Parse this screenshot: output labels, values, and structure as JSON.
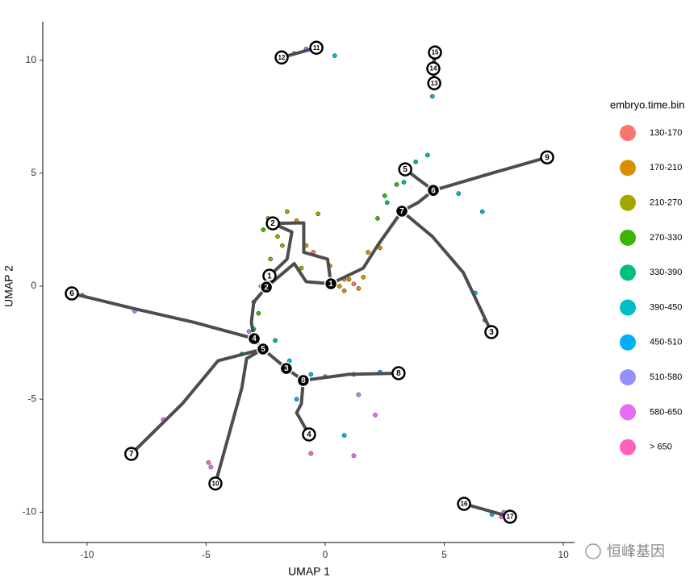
{
  "chart_data": {
    "type": "scatter",
    "x_label": "UMAP 1",
    "y_label": "UMAP 2",
    "xlim": [
      -11.86,
      10.47
    ],
    "ylim": [
      -11.34,
      11.7
    ],
    "xticks": [
      -10,
      -5,
      0,
      5,
      10
    ],
    "yticks": [
      -10,
      -5,
      0,
      5,
      10
    ],
    "grid": false,
    "legend_title": "embryo.time.bin",
    "legend_position": "right",
    "series": [
      {
        "name": "130-170",
        "color": "#F8766D",
        "x": [
          0.8,
          1.2,
          -0.5
        ],
        "y": [
          0.3,
          0.1,
          1.5
        ]
      },
      {
        "name": "170-210",
        "color": "#D89000",
        "x": [
          0.6,
          1.0,
          1.4,
          0.2,
          -0.8,
          1.8,
          -1.2,
          0.8,
          1.6,
          2.3
        ],
        "y": [
          0.0,
          0.3,
          -0.1,
          0.9,
          1.8,
          1.5,
          2.9,
          -0.2,
          0.4,
          1.7
        ]
      },
      {
        "name": "210-270",
        "color": "#A3A500",
        "x": [
          -2.0,
          -2.4,
          -1.6,
          -2.3,
          -1.0,
          -2.7,
          -0.3,
          -1.8
        ],
        "y": [
          2.2,
          3.0,
          3.3,
          1.2,
          0.8,
          0.0,
          3.2,
          1.8
        ]
      },
      {
        "name": "270-330",
        "color": "#39B600",
        "x": [
          -2.6,
          -3.0,
          -2.8,
          2.5,
          2.2,
          3.0,
          -2.4
        ],
        "y": [
          2.5,
          -0.7,
          -1.2,
          4.0,
          3.0,
          4.5,
          0.4
        ]
      },
      {
        "name": "330-390",
        "color": "#00BF7D",
        "x": [
          3.8,
          3.3,
          2.6,
          -3.0,
          -2.1,
          4.3
        ],
        "y": [
          5.5,
          4.6,
          3.7,
          -1.9,
          -2.4,
          5.8
        ]
      },
      {
        "name": "390-450",
        "color": "#00BFC4",
        "x": [
          -1.5,
          -0.6,
          1.2,
          0.4,
          4.5,
          5.6,
          6.7,
          -3.5,
          0.0
        ],
        "y": [
          -3.3,
          -3.9,
          -3.9,
          10.2,
          8.4,
          4.1,
          -1.5,
          -3.0,
          -4.0
        ]
      },
      {
        "name": "450-510",
        "color": "#00B0F6",
        "x": [
          6.6,
          6.3,
          0.8,
          -1.2,
          2.3,
          7.0
        ],
        "y": [
          3.3,
          -0.3,
          -6.6,
          -5.0,
          -3.8,
          -10.1
        ]
      },
      {
        "name": "510-580",
        "color": "#9590FF",
        "x": [
          1.4,
          -0.8,
          7.5,
          -8.0,
          -3.2
        ],
        "y": [
          -4.8,
          10.5,
          -10.0,
          -1.1,
          -2.0
        ]
      },
      {
        "name": "580-650",
        "color": "#E76BF3",
        "x": [
          2.1,
          -6.8,
          -4.8,
          -1.3,
          1.2
        ],
        "y": [
          -5.7,
          -5.9,
          -8.0,
          10.3,
          -7.5
        ]
      },
      {
        "name": "> 650",
        "color": "#FF62BC",
        "x": [
          -0.6,
          -10.2,
          -4.9,
          7.4
        ],
        "y": [
          -7.4,
          -0.4,
          -7.8,
          -10.2
        ]
      }
    ],
    "trajectory_color": "#4d4d4d",
    "trajectory": [
      {
        "x": [
          -1.83,
          -0.37
        ],
        "y": [
          10.12,
          10.55
        ]
      },
      {
        "x": [
          4.61,
          4.54,
          4.58
        ],
        "y": [
          10.34,
          9.63,
          8.98
        ]
      },
      {
        "x": [
          5.83,
          7.76
        ],
        "y": [
          -9.63,
          -10.2
        ]
      },
      {
        "x": [
          9.32,
          7.0,
          4.54
        ],
        "y": [
          5.7,
          5.0,
          4.24
        ]
      },
      {
        "x": [
          4.54,
          3.36
        ],
        "y": [
          4.24,
          5.17
        ]
      },
      {
        "x": [
          4.54,
          3.9,
          3.22
        ],
        "y": [
          4.24,
          3.7,
          3.32
        ]
      },
      {
        "x": [
          3.22,
          4.5,
          5.8,
          6.98
        ],
        "y": [
          3.32,
          2.2,
          0.6,
          -2.03
        ]
      },
      {
        "x": [
          3.22,
          2.2,
          1.6,
          0.24
        ],
        "y": [
          3.32,
          1.8,
          0.8,
          0.11
        ]
      },
      {
        "x": [
          0.24,
          0.1,
          -0.9,
          -0.9,
          -2.2
        ],
        "y": [
          0.11,
          1.2,
          1.5,
          2.8,
          2.78
        ]
      },
      {
        "x": [
          -2.2,
          -1.4,
          -1.6,
          -2.34
        ],
        "y": [
          2.78,
          2.4,
          1.2,
          0.46
        ]
      },
      {
        "x": [
          0.24,
          -0.8,
          -1.3,
          -2.47
        ],
        "y": [
          0.11,
          0.2,
          1.0,
          -0.04
        ]
      },
      {
        "x": [
          -2.47,
          -3.0,
          -3.1,
          -2.98
        ],
        "y": [
          -0.04,
          -0.7,
          -1.6,
          -2.32
        ]
      },
      {
        "x": [
          -10.64,
          -8.0,
          -5.5,
          -2.98
        ],
        "y": [
          -0.32,
          -1.0,
          -1.6,
          -2.32
        ]
      },
      {
        "x": [
          -2.98,
          -2.61
        ],
        "y": [
          -2.32,
          -2.78
        ]
      },
      {
        "x": [
          -2.61,
          -1.63
        ],
        "y": [
          -2.78,
          -3.64
        ]
      },
      {
        "x": [
          -1.63,
          -0.92
        ],
        "y": [
          -3.64,
          -4.17
        ]
      },
      {
        "x": [
          -0.92,
          1.0,
          3.08
        ],
        "y": [
          -4.17,
          -3.9,
          -3.85
        ]
      },
      {
        "x": [
          -0.92,
          -1.0,
          -1.2,
          -0.68
        ],
        "y": [
          -4.17,
          -5.2,
          -5.6,
          -6.56
        ]
      },
      {
        "x": [
          -2.61,
          -4.5,
          -6.0,
          -8.14
        ],
        "y": [
          -2.78,
          -3.3,
          -5.2,
          -7.42
        ]
      },
      {
        "x": [
          -2.61,
          -3.3,
          -3.5,
          -4.61
        ],
        "y": [
          -2.78,
          -3.2,
          -4.5,
          -8.73
        ]
      }
    ],
    "nodes": [
      {
        "label": "12",
        "x": -1.83,
        "y": 10.12,
        "fill": "#ffffff"
      },
      {
        "label": "11",
        "x": -0.37,
        "y": 10.55,
        "fill": "#ffffff"
      },
      {
        "label": "15",
        "x": 4.61,
        "y": 10.34,
        "fill": "#ffffff"
      },
      {
        "label": "14",
        "x": 4.54,
        "y": 9.63,
        "fill": "#ffffff"
      },
      {
        "label": "13",
        "x": 4.58,
        "y": 8.98,
        "fill": "#ffffff"
      },
      {
        "label": "9",
        "x": 9.32,
        "y": 5.7,
        "fill": "#ffffff"
      },
      {
        "label": "5",
        "x": 3.36,
        "y": 5.17,
        "fill": "#ffffff"
      },
      {
        "label": "6",
        "x": 4.54,
        "y": 4.24,
        "fill": "#000000"
      },
      {
        "label": "7",
        "x": 3.22,
        "y": 3.32,
        "fill": "#000000"
      },
      {
        "label": "2",
        "x": -2.2,
        "y": 2.78,
        "fill": "#ffffff"
      },
      {
        "label": "1",
        "x": -2.34,
        "y": 0.46,
        "fill": "#ffffff"
      },
      {
        "label": "2",
        "x": -2.47,
        "y": -0.04,
        "fill": "#000000"
      },
      {
        "label": "1",
        "x": 0.24,
        "y": 0.11,
        "fill": "#000000"
      },
      {
        "label": "6",
        "x": -10.64,
        "y": -0.32,
        "fill": "#ffffff"
      },
      {
        "label": "3",
        "x": 6.98,
        "y": -2.03,
        "fill": "#ffffff"
      },
      {
        "label": "4",
        "x": -2.98,
        "y": -2.32,
        "fill": "#000000"
      },
      {
        "label": "5",
        "x": -2.61,
        "y": -2.78,
        "fill": "#000000"
      },
      {
        "label": "3",
        "x": -1.63,
        "y": -3.64,
        "fill": "#000000"
      },
      {
        "label": "8",
        "x": -0.92,
        "y": -4.17,
        "fill": "#000000"
      },
      {
        "label": "8",
        "x": 3.08,
        "y": -3.85,
        "fill": "#ffffff"
      },
      {
        "label": "4",
        "x": -0.68,
        "y": -6.56,
        "fill": "#ffffff"
      },
      {
        "label": "7",
        "x": -8.14,
        "y": -7.42,
        "fill": "#ffffff"
      },
      {
        "label": "10",
        "x": -4.61,
        "y": -8.73,
        "fill": "#ffffff"
      },
      {
        "label": "16",
        "x": 5.83,
        "y": -9.63,
        "fill": "#ffffff"
      },
      {
        "label": "17",
        "x": 7.76,
        "y": -10.2,
        "fill": "#ffffff"
      }
    ],
    "watermark": "恒峰基因"
  }
}
